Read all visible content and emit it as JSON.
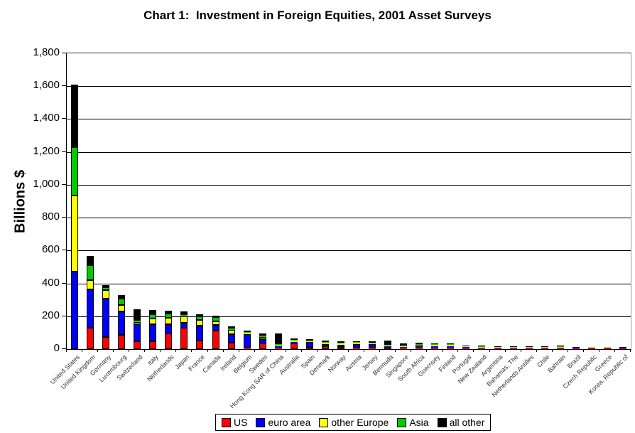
{
  "title": "Chart 1:  Investment in Foreign Equities, 2001 Asset Surveys",
  "chart_data": {
    "type": "bar",
    "stacked": true,
    "title": "Chart 1:  Investment in Foreign Equities, 2001 Asset Surveys",
    "xlabel": "",
    "ylabel": "Billions $",
    "ylim": [
      0,
      1800
    ],
    "ytick_interval": 200,
    "grid": true,
    "legend_position": "bottom",
    "categories": [
      "United States",
      "United Kingdom",
      "Germany",
      "Luxembourg",
      "Switzerland",
      "Italy",
      "Netherlands",
      "Japan",
      "France",
      "Canada",
      "Ireland",
      "Belgium",
      "Sweden",
      "Hong Kong SAR of China",
      "Australia",
      "Spain",
      "Denmark",
      "Norway",
      "Austria",
      "Jersey",
      "Bermuda",
      "Singapore",
      "South Africa",
      "Guernsey",
      "Finland",
      "Portugal",
      "New Zealand",
      "Argentina",
      "Bahamas, The",
      "Netherlands Antilles",
      "Chile",
      "Bahrain",
      "Brazil",
      "Czech Republic",
      "Greece",
      "Korea, Republic of"
    ],
    "series": [
      {
        "name": "US",
        "color": "#FF0000",
        "values": [
          0,
          130,
          75,
          88,
          48,
          46,
          95,
          128,
          50,
          114,
          40,
          7,
          36,
          7,
          36,
          11,
          17,
          15,
          7,
          10,
          12,
          8,
          10,
          7,
          8,
          2,
          4,
          5,
          4,
          3,
          3,
          2,
          3,
          1,
          1,
          1
        ]
      },
      {
        "name": "euro area",
        "color": "#0000FF",
        "values": [
          470,
          232,
          233,
          142,
          103,
          106,
          55,
          30,
          93,
          36,
          53,
          82,
          28,
          9,
          10,
          32,
          14,
          15,
          23,
          20,
          2,
          6,
          6,
          10,
          10,
          10,
          2,
          2,
          1,
          2,
          1,
          1,
          1,
          2,
          2,
          1
        ]
      },
      {
        "name": "other Europe",
        "color": "#FFFF00",
        "values": [
          465,
          55,
          52,
          38,
          14,
          36,
          40,
          38,
          36,
          21,
          27,
          8,
          15,
          4,
          8,
          6,
          8,
          8,
          8,
          4,
          2,
          6,
          12,
          8,
          8,
          1,
          2,
          1,
          1,
          2,
          1,
          1,
          0,
          1,
          1,
          0
        ]
      },
      {
        "name": "Asia",
        "color": "#00CC00",
        "values": [
          295,
          90,
          18,
          40,
          10,
          26,
          26,
          8,
          21,
          26,
          9,
          6,
          7,
          9,
          6,
          4,
          4,
          2,
          2,
          2,
          1,
          15,
          2,
          2,
          1,
          0,
          2,
          0,
          0,
          0,
          0,
          1,
          0,
          0,
          0,
          0
        ]
      },
      {
        "name": "all other",
        "color": "#000000",
        "values": [
          380,
          58,
          12,
          22,
          70,
          24,
          16,
          22,
          11,
          10,
          11,
          8,
          11,
          64,
          9,
          7,
          7,
          7,
          5,
          8,
          26,
          6,
          7,
          6,
          3,
          2,
          3,
          2,
          3,
          1,
          2,
          1,
          2,
          0,
          0,
          1
        ]
      }
    ]
  }
}
